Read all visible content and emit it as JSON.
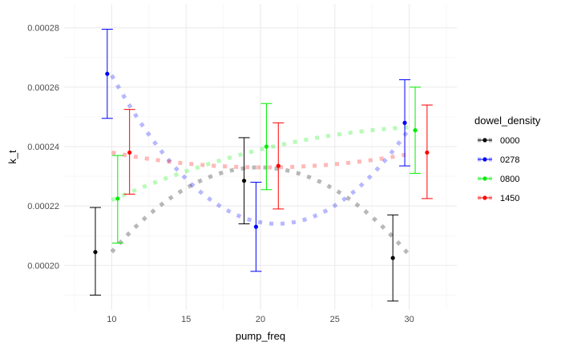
{
  "chart_data": {
    "type": "scatter",
    "title": "",
    "xlabel": "pump_freq",
    "ylabel": "k_t",
    "xlim": [
      6.8,
      33.2
    ],
    "ylim": [
      0.000185,
      0.000288
    ],
    "x_ticks": [
      10,
      15,
      20,
      25,
      30
    ],
    "y_ticks": [
      0.0002,
      0.00022,
      0.00024,
      0.00026,
      0.00028
    ],
    "y_tick_labels": [
      "0.00020",
      "0.00022",
      "0.00024",
      "0.00026",
      "0.00028"
    ],
    "grid": true,
    "legend": {
      "title": "dowel_density",
      "position": "right"
    },
    "series": [
      {
        "name": "0000",
        "color": "#000000",
        "points": [
          {
            "x": 8.9,
            "y": 0.0002045,
            "low": 0.00019,
            "high": 0.0002195
          },
          {
            "x": 18.9,
            "y": 0.0002285,
            "low": 0.000214,
            "high": 0.000243
          },
          {
            "x": 28.9,
            "y": 0.0002025,
            "low": 0.000188,
            "high": 0.000217
          }
        ],
        "fit": [
          [
            10,
            0.0002045
          ],
          [
            20,
            0.000233
          ],
          [
            30,
            0.0002035
          ]
        ]
      },
      {
        "name": "0278",
        "color": "#0000ff",
        "points": [
          {
            "x": 9.7,
            "y": 0.0002645,
            "low": 0.0002495,
            "high": 0.0002795
          },
          {
            "x": 19.7,
            "y": 0.000213,
            "low": 0.000198,
            "high": 0.000228
          },
          {
            "x": 29.7,
            "y": 0.000248,
            "low": 0.0002335,
            "high": 0.0002625
          }
        ],
        "fit": [
          [
            10,
            0.000264
          ],
          [
            20,
            0.0002145
          ],
          [
            30,
            0.000246
          ]
        ]
      },
      {
        "name": "0800",
        "color": "#00ee00",
        "points": [
          {
            "x": 10.4,
            "y": 0.0002225,
            "low": 0.0002075,
            "high": 0.000237
          },
          {
            "x": 20.4,
            "y": 0.00024,
            "low": 0.0002255,
            "high": 0.0002545
          },
          {
            "x": 30.4,
            "y": 0.0002455,
            "low": 0.000231,
            "high": 0.00026
          }
        ],
        "fit": [
          [
            10,
            0.000222
          ],
          [
            20,
            0.000239
          ],
          [
            30,
            0.0002465
          ]
        ]
      },
      {
        "name": "1450",
        "color": "#ff0000",
        "points": [
          {
            "x": 11.2,
            "y": 0.000238,
            "low": 0.000224,
            "high": 0.0002525
          },
          {
            "x": 21.2,
            "y": 0.0002335,
            "low": 0.000219,
            "high": 0.000248
          },
          {
            "x": 31.2,
            "y": 0.000238,
            "low": 0.0002225,
            "high": 0.000254
          }
        ],
        "fit": [
          [
            10,
            0.000238
          ],
          [
            20,
            0.000233
          ],
          [
            30,
            0.0002375
          ]
        ]
      }
    ]
  }
}
